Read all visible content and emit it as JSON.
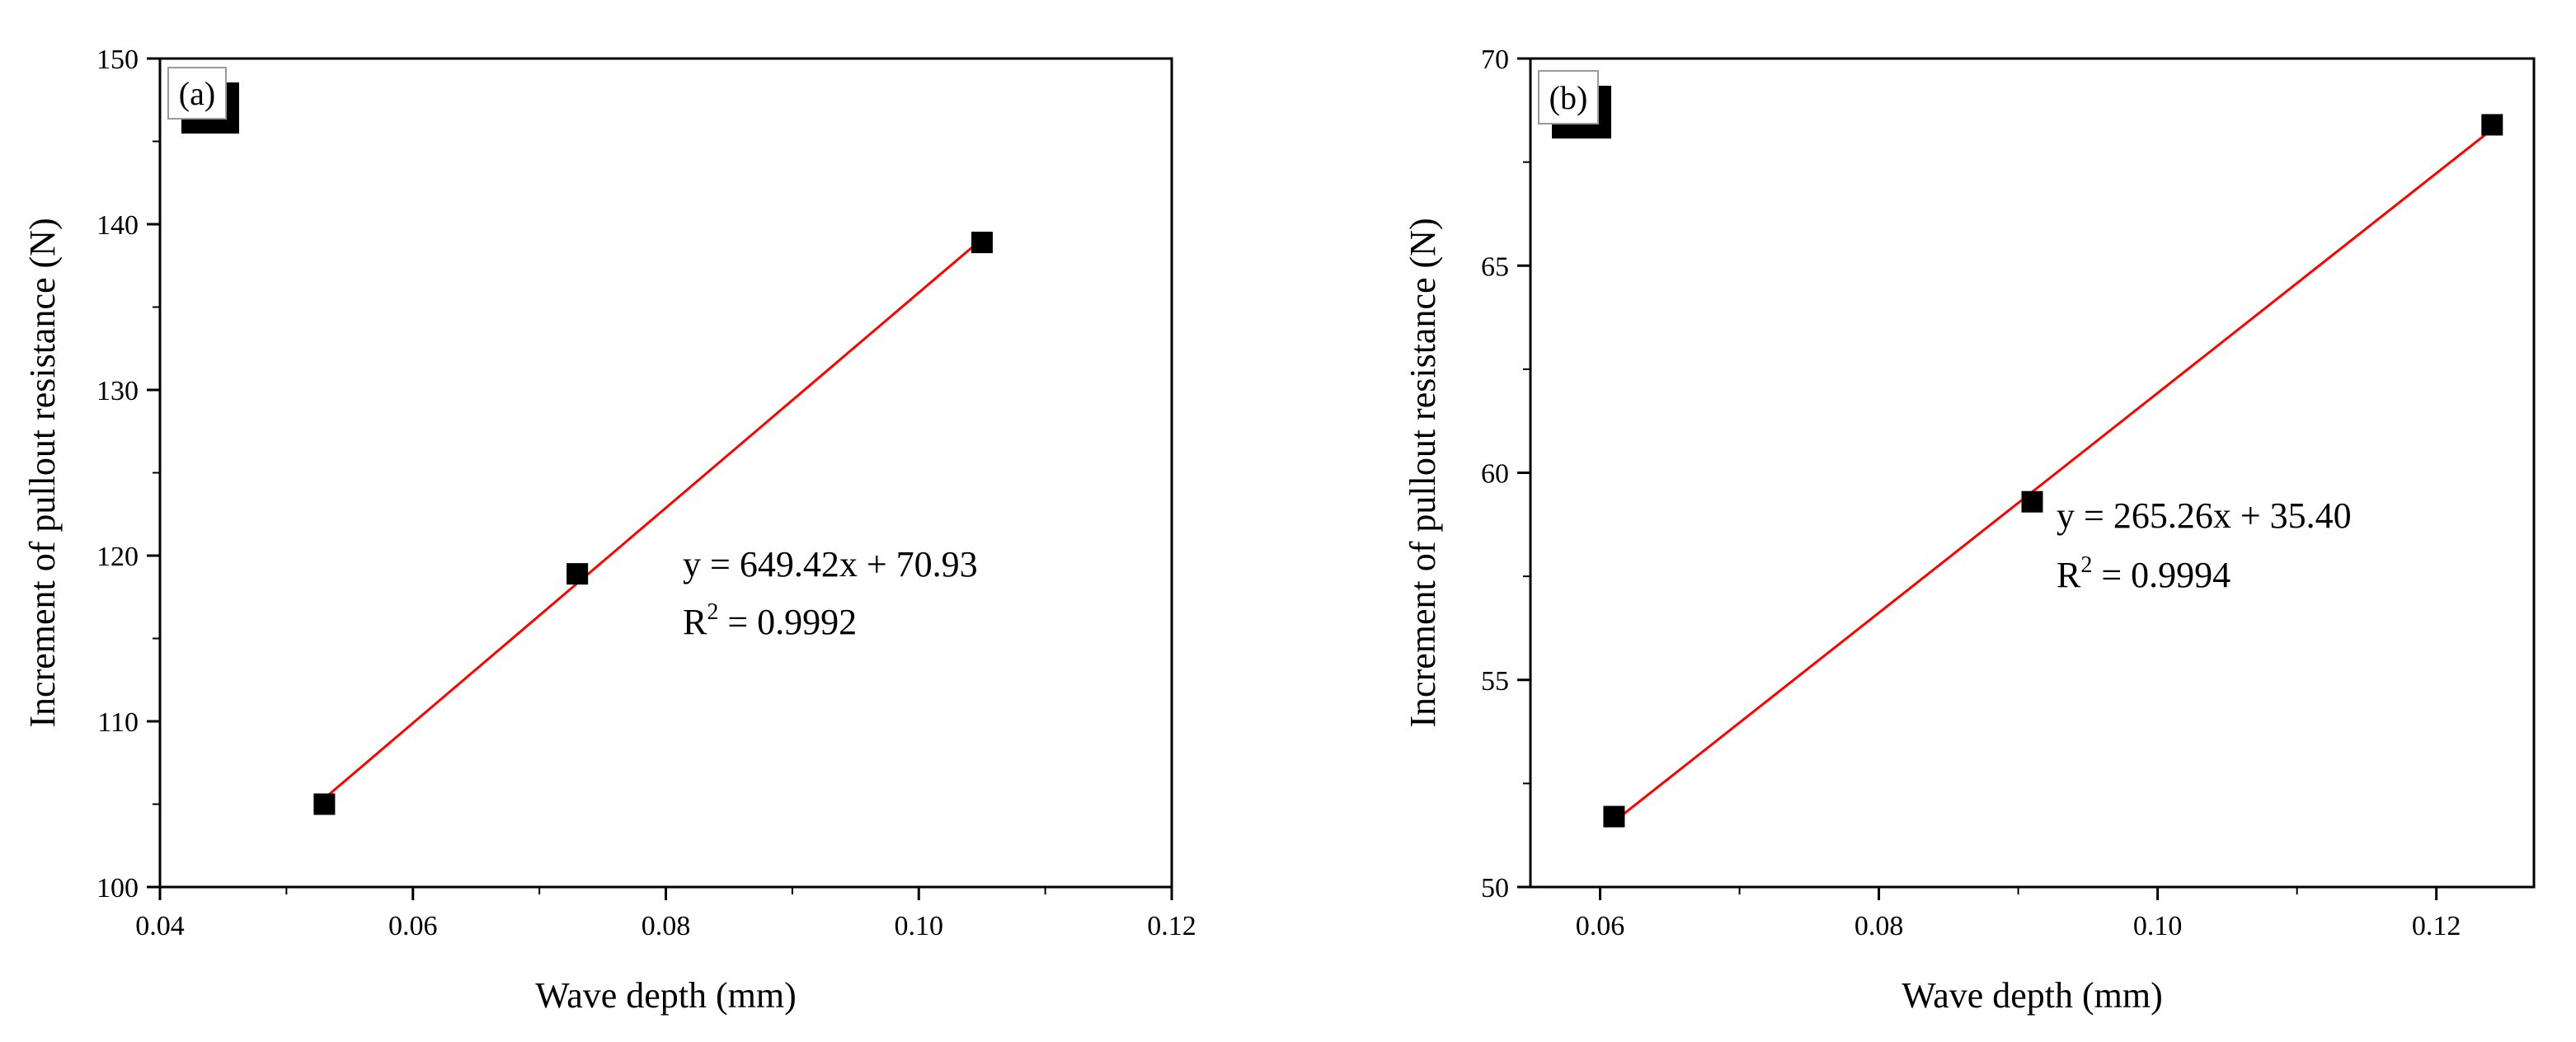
{
  "chart_data": [
    {
      "type": "scatter",
      "panel_label": "(a)",
      "xlabel": "Wave depth (mm)",
      "ylabel": "Increment of pullout resistance (N)",
      "xlim": [
        0.04,
        0.12
      ],
      "ylim": [
        100,
        150
      ],
      "xticks": [
        0.04,
        0.06,
        0.08,
        0.1,
        0.12
      ],
      "xtick_labels": [
        "0.04",
        "0.06",
        "0.08",
        "0.10",
        "0.12"
      ],
      "yticks": [
        100,
        110,
        120,
        130,
        140,
        150
      ],
      "ytick_labels": [
        "100",
        "110",
        "120",
        "130",
        "140",
        "150"
      ],
      "points": [
        {
          "x": 0.053,
          "y": 105.0
        },
        {
          "x": 0.073,
          "y": 118.9
        },
        {
          "x": 0.105,
          "y": 138.9
        }
      ],
      "fit": {
        "slope": 649.42,
        "intercept": 70.93,
        "x_range": [
          0.053,
          0.105
        ],
        "color": "#ff0000"
      },
      "equation": "y = 649.42x + 70.93",
      "r2_prefix": "R",
      "r2_sup": "2",
      "r2_value": " = 0.9992",
      "marker_color": "#000000",
      "grid": false
    },
    {
      "type": "scatter",
      "panel_label": "(b)",
      "xlabel": "Wave depth (mm)",
      "ylabel": "Increment of pullout resistance (N)",
      "xlim": [
        0.055,
        0.127
      ],
      "ylim": [
        50,
        70
      ],
      "xticks": [
        0.06,
        0.08,
        0.1,
        0.12
      ],
      "xtick_labels": [
        "0.06",
        "0.08",
        "0.10",
        "0.12"
      ],
      "yticks": [
        50,
        55,
        60,
        65,
        70
      ],
      "ytick_labels": [
        "50",
        "55",
        "60",
        "65",
        "70"
      ],
      "points": [
        {
          "x": 0.061,
          "y": 51.7
        },
        {
          "x": 0.091,
          "y": 59.3
        },
        {
          "x": 0.124,
          "y": 68.4
        }
      ],
      "fit": {
        "slope": 265.26,
        "intercept": 35.4,
        "x_range": [
          0.061,
          0.124
        ],
        "color": "#ff0000"
      },
      "equation": "y = 265.26x + 35.40",
      "r2_prefix": "R",
      "r2_sup": "2",
      "r2_value": " = 0.9994",
      "marker_color": "#000000",
      "grid": false
    }
  ]
}
